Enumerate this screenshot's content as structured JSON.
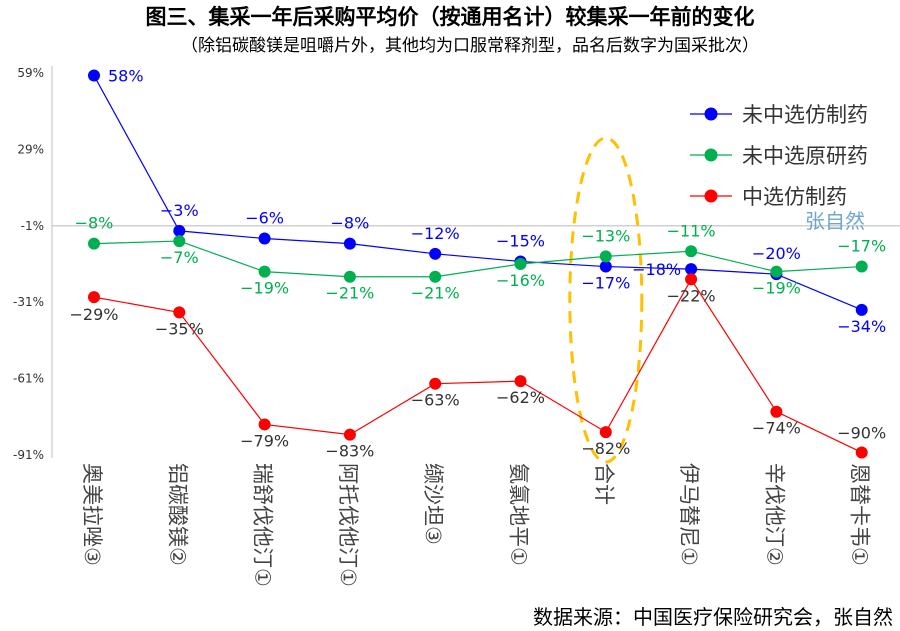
{
  "chart_data": {
    "type": "line",
    "title": "图三、集采一年后采购平均价（按通用名计）较集采一年前的变化",
    "subtitle": "（除铝碳酸镁是咀嚼片外，其他均为口服常释剂型，品名后数字为国采批次）",
    "categories": [
      "奥美拉唑③",
      "铝碳酸镁②",
      "瑞舒伐他汀①",
      "阿托伐他汀①",
      "缬沙坦③",
      "氨氯地平①",
      "合计",
      "伊马替尼①",
      "辛伐他汀②",
      "恩替卡韦①"
    ],
    "yticks": [
      "59%",
      "29%",
      "-1%",
      "-31%",
      "-61%",
      "-91%"
    ],
    "ylim": [
      -91,
      59
    ],
    "series": [
      {
        "name": "未中选仿制药",
        "color": "#0000FF",
        "values": [
          58,
          -3,
          -6,
          -8,
          -12,
          -15,
          -17,
          -18,
          -20,
          -34
        ]
      },
      {
        "name": "未中选原研药",
        "color": "#00B050",
        "values": [
          -8,
          -7,
          -19,
          -21,
          -21,
          -16,
          -13,
          -11,
          -19,
          -17
        ]
      },
      {
        "name": "中选仿制药",
        "color": "#FF0000",
        "values": [
          -29,
          -35,
          -79,
          -83,
          -63,
          -62,
          -82,
          -22,
          -74,
          -90
        ]
      }
    ],
    "legend_position": "top-right",
    "highlight": {
      "category": "合计",
      "color": "#FFC000",
      "style": "dashed-ellipse"
    },
    "source": "数据来源：中国医疗保险研究会，张自然",
    "watermark": "张自然"
  }
}
